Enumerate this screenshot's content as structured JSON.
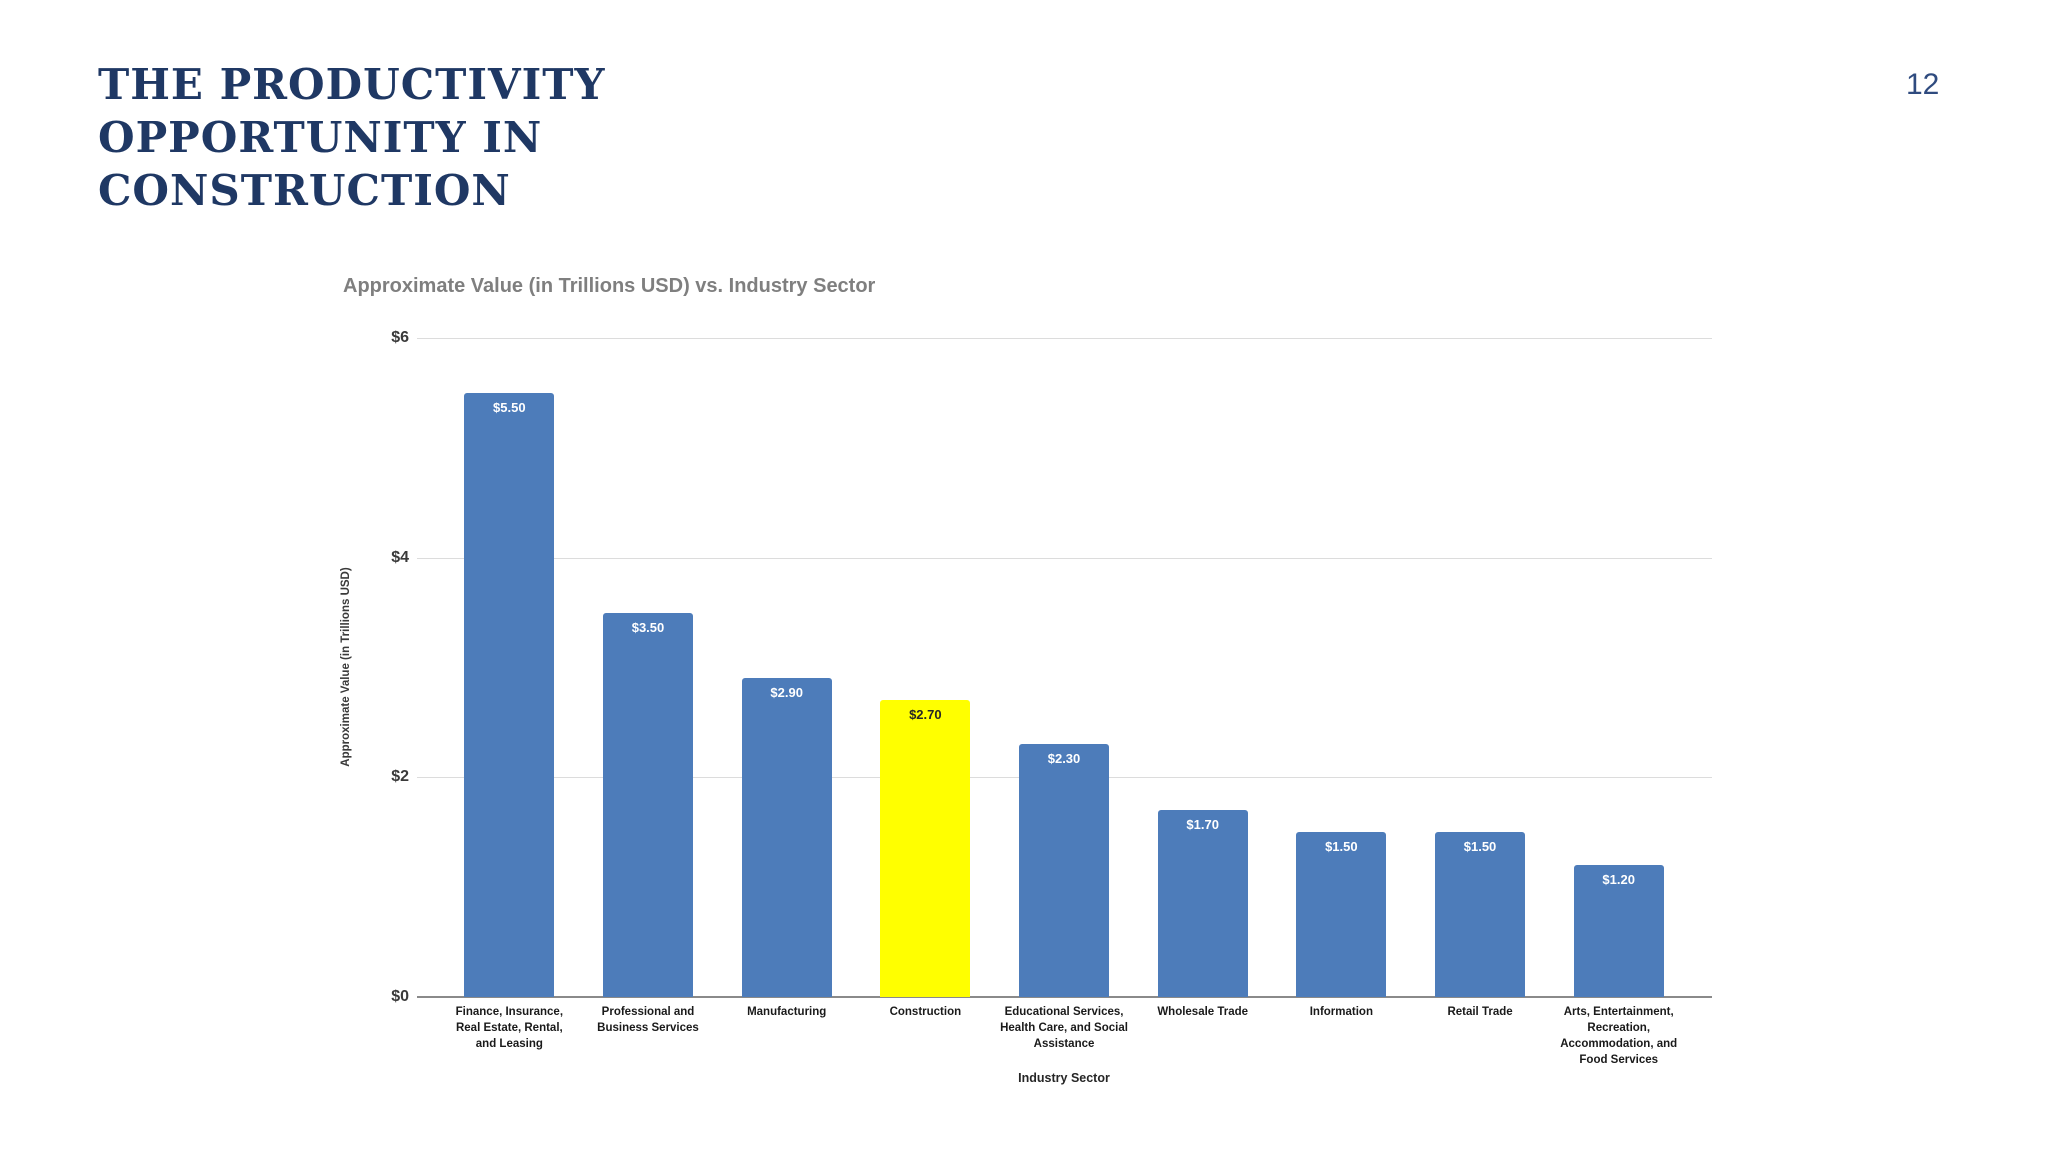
{
  "slide": {
    "title": "THE PRODUCTIVITY\nOPPORTUNITY IN\nCONSTRUCTION",
    "title_color": "#1f3864",
    "page_number": "12"
  },
  "chart_data": {
    "type": "bar",
    "title": "Approximate Value (in Trillions USD) vs. Industry Sector",
    "xlabel": "Industry Sector",
    "ylabel": "Approximate Value (in Trillions USD)",
    "ylim": [
      0,
      6
    ],
    "grid": "horizontal",
    "legend": "none",
    "yticks": [
      {
        "label": "$0",
        "value": 0
      },
      {
        "label": "$2",
        "value": 2
      },
      {
        "label": "$4",
        "value": 4
      },
      {
        "label": "$6",
        "value": 6
      }
    ],
    "categories": [
      "Finance, Insurance, Real Estate, Rental, and Leasing",
      "Professional and Business Services",
      "Manufacturing",
      "Construction",
      "Educational Services, Health Care, and Social Assistance",
      "Wholesale Trade",
      "Information",
      "Retail Trade",
      "Arts, Entertainment, Recreation, Accommodation, and Food Services"
    ],
    "values": [
      5.5,
      3.5,
      2.9,
      2.7,
      2.3,
      1.7,
      1.5,
      1.5,
      1.2
    ],
    "value_labels": [
      "$5.50",
      "$3.50",
      "$2.90",
      "$2.70",
      "$2.30",
      "$1.70",
      "$1.50",
      "$1.50",
      "$1.20"
    ],
    "highlight_index": 3,
    "colors": {
      "bar": "#4d7cba",
      "highlight": "#ffff00",
      "label_on_bar": "#ffffff",
      "label_on_highlight": "#262626"
    }
  }
}
